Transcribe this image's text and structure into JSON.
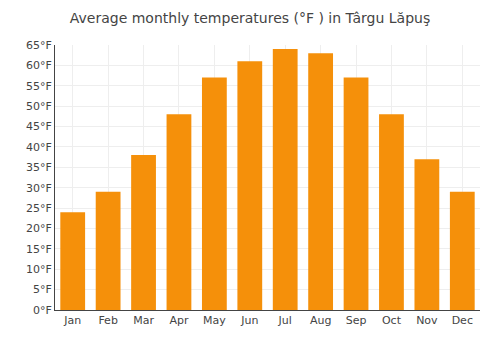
{
  "chart_data": {
    "type": "bar",
    "title": "Average monthly temperatures (°F ) in Târgu Lăpuş",
    "categories": [
      "Jan",
      "Feb",
      "Mar",
      "Apr",
      "May",
      "Jun",
      "Jul",
      "Aug",
      "Sep",
      "Oct",
      "Nov",
      "Dec"
    ],
    "values": [
      24,
      29,
      38,
      48,
      57,
      61,
      64,
      63,
      57,
      48,
      37,
      29
    ],
    "color": "#F5900A",
    "ylim": [
      0,
      65
    ],
    "yticks": [
      {
        "value": 0,
        "label": "0°F"
      },
      {
        "value": 5,
        "label": "5°F"
      },
      {
        "value": 10,
        "label": "10°F"
      },
      {
        "value": 15,
        "label": "15°F"
      },
      {
        "value": 20,
        "label": "20°F"
      },
      {
        "value": 25,
        "label": "25°F"
      },
      {
        "value": 30,
        "label": "30°F"
      },
      {
        "value": 35,
        "label": "35°F"
      },
      {
        "value": 40,
        "label": "40°F"
      },
      {
        "value": 45,
        "label": "45°F"
      },
      {
        "value": 50,
        "label": "50°F"
      },
      {
        "value": 55,
        "label": "55°F"
      },
      {
        "value": 60,
        "label": "60°F"
      },
      {
        "value": 65,
        "label": "65°F"
      }
    ],
    "grid": true
  }
}
